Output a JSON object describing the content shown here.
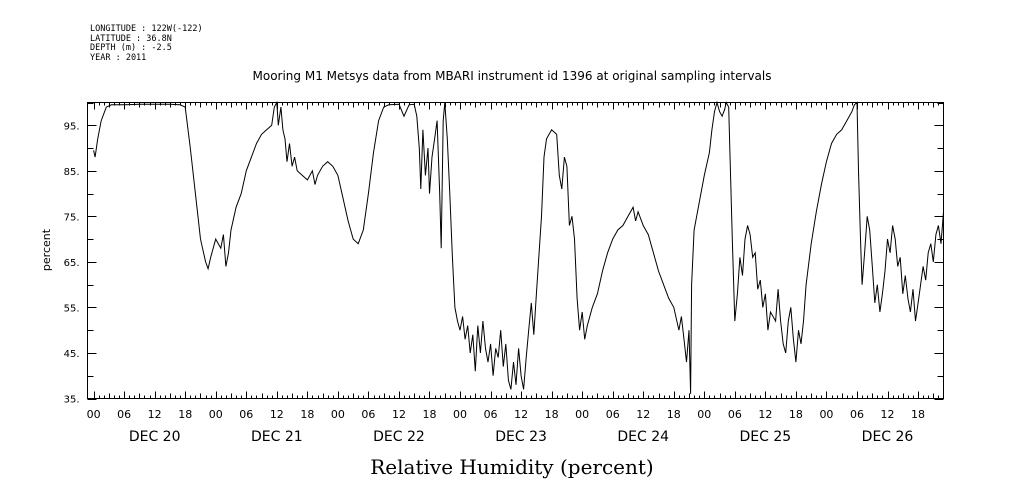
{
  "header": {
    "meta_lines": [
      "LONGITUDE : 122W(-122)",
      "LATITUDE : 36.8N",
      "DEPTH (m) : -2.5",
      "YEAR : 2011"
    ],
    "title": "Mooring M1 Metsys data from MBARI instrument id 1396 at original sampling intervals"
  },
  "chart_data": {
    "type": "line",
    "title": "Mooring M1 Metsys data from MBARI instrument id 1396 at original sampling intervals",
    "xlabel": "Relative Humidity (percent)",
    "ylabel": "percent",
    "ylim": [
      35,
      100
    ],
    "yticks": [
      "35.",
      "45.",
      "55.",
      "65.",
      "75.",
      "85.",
      "95."
    ],
    "x_unit": "hours since DEC 20 00",
    "xlim": [
      -1.2,
      167
    ],
    "hour_tick_labels": [
      "00",
      "06",
      "12",
      "18"
    ],
    "day_labels": [
      "DEC 20",
      "DEC 21",
      "DEC 22",
      "DEC 23",
      "DEC 24",
      "DEC 25",
      "DEC 26"
    ],
    "grid": false,
    "series": [
      {
        "points": [
          [
            0,
            89.5
          ],
          [
            0.3,
            88
          ],
          [
            0.8,
            92
          ],
          [
            1.5,
            96
          ],
          [
            2.5,
            99
          ],
          [
            3.5,
            99.5
          ],
          [
            6,
            99.5
          ],
          [
            9,
            99.6
          ],
          [
            12,
            99.6
          ],
          [
            15,
            99.6
          ],
          [
            17,
            99.5
          ],
          [
            18,
            99
          ],
          [
            19,
            90
          ],
          [
            20,
            80
          ],
          [
            21,
            70
          ],
          [
            22,
            65
          ],
          [
            22.5,
            63.5
          ],
          [
            23,
            66
          ],
          [
            24,
            70
          ],
          [
            25,
            68
          ],
          [
            25.5,
            71
          ],
          [
            26,
            64
          ],
          [
            26.5,
            67
          ],
          [
            27,
            72
          ],
          [
            28,
            77
          ],
          [
            29,
            80
          ],
          [
            30,
            85
          ],
          [
            31,
            88
          ],
          [
            32,
            91
          ],
          [
            33,
            93
          ],
          [
            34,
            94
          ],
          [
            35,
            95
          ],
          [
            35.5,
            99
          ],
          [
            36,
            100
          ],
          [
            36.3,
            95
          ],
          [
            36.8,
            99
          ],
          [
            37.2,
            94
          ],
          [
            37.6,
            92
          ],
          [
            38,
            87
          ],
          [
            38.5,
            91
          ],
          [
            39,
            86
          ],
          [
            39.5,
            88
          ],
          [
            40,
            85
          ],
          [
            41,
            84
          ],
          [
            42,
            83
          ],
          [
            43,
            85
          ],
          [
            43.5,
            82
          ],
          [
            44,
            84
          ],
          [
            45,
            86
          ],
          [
            46,
            87
          ],
          [
            47,
            86
          ],
          [
            48,
            84
          ],
          [
            49,
            79
          ],
          [
            50,
            74
          ],
          [
            51,
            70
          ],
          [
            52,
            69
          ],
          [
            53,
            72
          ],
          [
            54,
            80
          ],
          [
            55,
            89
          ],
          [
            56,
            96
          ],
          [
            57,
            99
          ],
          [
            58,
            99.5
          ],
          [
            60,
            99.6
          ],
          [
            61,
            97
          ],
          [
            62,
            99.5
          ],
          [
            63,
            99.6
          ],
          [
            63.5,
            97
          ],
          [
            64,
            90
          ],
          [
            64.3,
            81
          ],
          [
            64.7,
            94
          ],
          [
            65.2,
            84
          ],
          [
            65.7,
            90
          ],
          [
            66,
            80
          ],
          [
            66.5,
            88
          ],
          [
            67,
            92
          ],
          [
            67.5,
            96
          ],
          [
            68,
            80
          ],
          [
            68.3,
            68
          ],
          [
            68.7,
            96
          ],
          [
            69,
            100
          ],
          [
            69.5,
            92
          ],
          [
            70,
            80
          ],
          [
            70.5,
            66
          ],
          [
            71,
            55
          ],
          [
            71.5,
            52
          ],
          [
            72,
            50
          ],
          [
            72.5,
            53
          ],
          [
            73,
            48
          ],
          [
            73.5,
            51
          ],
          [
            74,
            45
          ],
          [
            74.5,
            49
          ],
          [
            75,
            41
          ],
          [
            75.5,
            51
          ],
          [
            76,
            45
          ],
          [
            76.5,
            52
          ],
          [
            77,
            46
          ],
          [
            77.5,
            43
          ],
          [
            78,
            47
          ],
          [
            78.5,
            40
          ],
          [
            79,
            46
          ],
          [
            79.5,
            44
          ],
          [
            80,
            50
          ],
          [
            80.5,
            42
          ],
          [
            81,
            47
          ],
          [
            81.5,
            39
          ],
          [
            82,
            37
          ],
          [
            82.5,
            43
          ],
          [
            83,
            38
          ],
          [
            83.5,
            46
          ],
          [
            84,
            40
          ],
          [
            84.5,
            37
          ],
          [
            85,
            44
          ],
          [
            85.5,
            50
          ],
          [
            86,
            56
          ],
          [
            86.5,
            49
          ],
          [
            87,
            58
          ],
          [
            88,
            75
          ],
          [
            88.5,
            88
          ],
          [
            89,
            92
          ],
          [
            90,
            94
          ],
          [
            91,
            93
          ],
          [
            91.5,
            84
          ],
          [
            92,
            81
          ],
          [
            92.5,
            88
          ],
          [
            93,
            86
          ],
          [
            93.5,
            73
          ],
          [
            94,
            75
          ],
          [
            94.5,
            70
          ],
          [
            95,
            57
          ],
          [
            95.5,
            50
          ],
          [
            96,
            54
          ],
          [
            96.5,
            48
          ],
          [
            97,
            51
          ],
          [
            98,
            55
          ],
          [
            99,
            58
          ],
          [
            100,
            63
          ],
          [
            101,
            67
          ],
          [
            102,
            70
          ],
          [
            103,
            72
          ],
          [
            104,
            73
          ],
          [
            105,
            75
          ],
          [
            106,
            77
          ],
          [
            106.5,
            74
          ],
          [
            107,
            76
          ],
          [
            108,
            73
          ],
          [
            109,
            71
          ],
          [
            110,
            67
          ],
          [
            111,
            63
          ],
          [
            112,
            60
          ],
          [
            113,
            57
          ],
          [
            114,
            55
          ],
          [
            115,
            50
          ],
          [
            115.5,
            53
          ],
          [
            116,
            48
          ],
          [
            116.5,
            43
          ],
          [
            117,
            50
          ],
          [
            117.3,
            36
          ],
          [
            117.5,
            60
          ],
          [
            118,
            72
          ],
          [
            119,
            78
          ],
          [
            120,
            84
          ],
          [
            121,
            89
          ],
          [
            121.5,
            94
          ],
          [
            122,
            98
          ],
          [
            122.5,
            100
          ],
          [
            123,
            98
          ],
          [
            123.5,
            97
          ],
          [
            124,
            98.5
          ],
          [
            124.3,
            100
          ],
          [
            124.8,
            99
          ],
          [
            125,
            90
          ],
          [
            125.5,
            70
          ],
          [
            126,
            52
          ],
          [
            126.5,
            58
          ],
          [
            127,
            66
          ],
          [
            127.5,
            62
          ],
          [
            128,
            70
          ],
          [
            128.5,
            73
          ],
          [
            129,
            71
          ],
          [
            129.5,
            66
          ],
          [
            130,
            67
          ],
          [
            130.5,
            59
          ],
          [
            131,
            61
          ],
          [
            131.5,
            55
          ],
          [
            132,
            58
          ],
          [
            132.5,
            50
          ],
          [
            133,
            54
          ],
          [
            134,
            52
          ],
          [
            134.5,
            59
          ],
          [
            135,
            52
          ],
          [
            135.5,
            47
          ],
          [
            136,
            45
          ],
          [
            136.5,
            52
          ],
          [
            137,
            55
          ],
          [
            137.5,
            48
          ],
          [
            138,
            43
          ],
          [
            138.5,
            50
          ],
          [
            139,
            47
          ],
          [
            139.5,
            52
          ],
          [
            140,
            60
          ],
          [
            141,
            69
          ],
          [
            142,
            76
          ],
          [
            143,
            82
          ],
          [
            144,
            87
          ],
          [
            145,
            91
          ],
          [
            146,
            93
          ],
          [
            147,
            94
          ],
          [
            148,
            96
          ],
          [
            149,
            98
          ],
          [
            149.5,
            99.5
          ],
          [
            150,
            100
          ],
          [
            150.3,
            85
          ],
          [
            150.7,
            70
          ],
          [
            151,
            60
          ],
          [
            151.5,
            67
          ],
          [
            152,
            75
          ],
          [
            152.5,
            72
          ],
          [
            153,
            64
          ],
          [
            153.5,
            56
          ],
          [
            154,
            60
          ],
          [
            154.5,
            54
          ],
          [
            155,
            58
          ],
          [
            155.5,
            63
          ],
          [
            156,
            70
          ],
          [
            156.5,
            67
          ],
          [
            157,
            73
          ],
          [
            157.5,
            70
          ],
          [
            158,
            64
          ],
          [
            158.5,
            66
          ],
          [
            159,
            58
          ],
          [
            159.5,
            62
          ],
          [
            160,
            57
          ],
          [
            160.5,
            54
          ],
          [
            161,
            59
          ],
          [
            161.5,
            52
          ],
          [
            162,
            56
          ],
          [
            162.5,
            60
          ],
          [
            163,
            64
          ],
          [
            163.5,
            61
          ],
          [
            164,
            67
          ],
          [
            164.5,
            69
          ],
          [
            165,
            65
          ],
          [
            165.5,
            71
          ],
          [
            166,
            73
          ],
          [
            166.5,
            69
          ],
          [
            167,
            76
          ]
        ]
      }
    ]
  }
}
